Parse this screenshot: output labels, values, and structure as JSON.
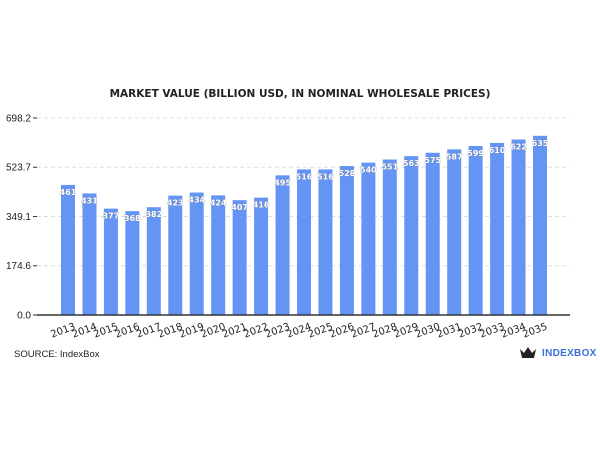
{
  "chart_data": {
    "type": "bar",
    "title": "MARKET VALUE (BILLION USD, IN NOMINAL WHOLESALE PRICES)",
    "xlabel": "",
    "ylabel": "",
    "categories": [
      "2013",
      "2014",
      "2015",
      "2016",
      "2017",
      "2018",
      "2019",
      "2020",
      "2021",
      "2022",
      "2023",
      "2024",
      "2025",
      "2026",
      "2027",
      "2028",
      "2029",
      "2030",
      "2031",
      "2032",
      "2033",
      "2034",
      "2035"
    ],
    "values": [
      461,
      431,
      377,
      368,
      382,
      423,
      434,
      424,
      407,
      416,
      495,
      516,
      516,
      528,
      540,
      551,
      563,
      575,
      587,
      599,
      610,
      622,
      635
    ],
    "yticks": [
      "0.0",
      "174.6",
      "349.1",
      "523.7",
      "698.2"
    ],
    "ylim": [
      0,
      698.2
    ],
    "grid": true,
    "bar_color": "#6495f5"
  },
  "source": "SOURCE: IndexBox",
  "logo": {
    "text": "INDEXBOX",
    "icon": "crown-icon",
    "color": "#3b6fd8"
  }
}
